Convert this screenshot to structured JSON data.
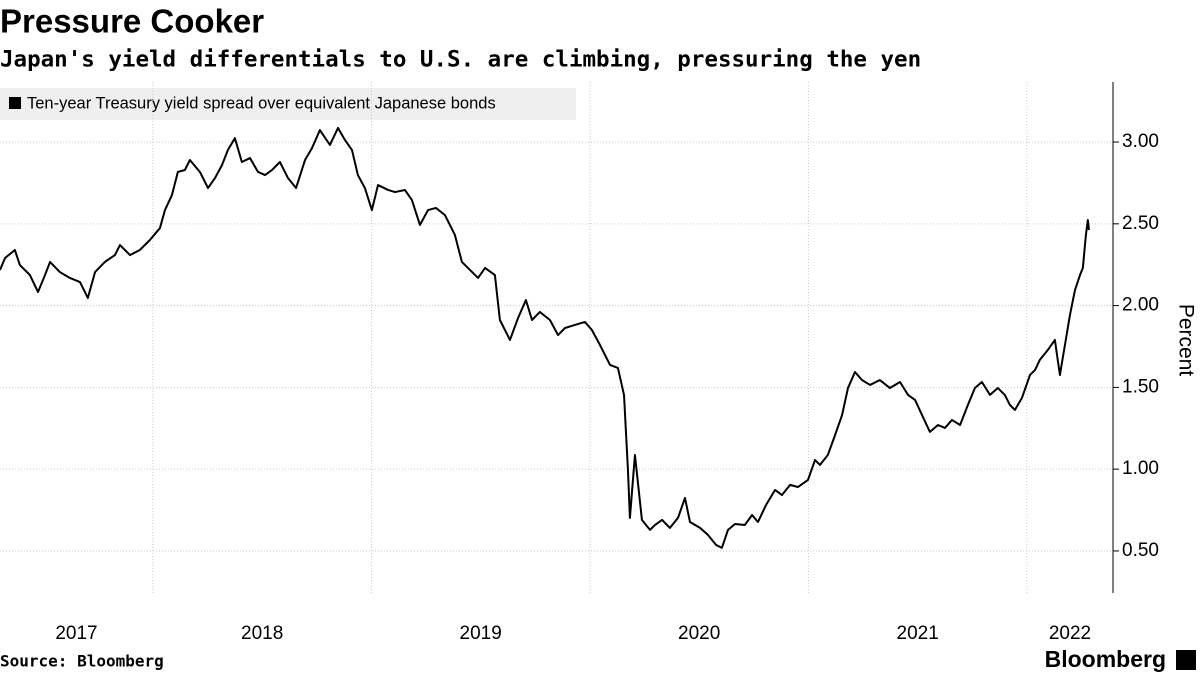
{
  "chart_data": {
    "type": "line",
    "title": "Pressure Cooker",
    "subtitle": "Japan's yield differentials to U.S. are climbing, pressuring the yen",
    "y_label": "Percent",
    "source": "Source: Bloomberg",
    "brand": "Bloomberg",
    "year_labels": [
      "2017",
      "2018",
      "2019",
      "2020",
      "2021",
      "2022"
    ],
    "xlim": [
      2017.3,
      2022.394
    ],
    "xticks": [
      2018,
      2019,
      2020,
      2021,
      2022
    ],
    "ylim": [
      0.243,
      3.367
    ],
    "yticks": [
      {
        "value": 0.5,
        "label": "0.50"
      },
      {
        "value": 1,
        "label": "1.00"
      },
      {
        "value": 1.5,
        "label": "1.50"
      },
      {
        "value": 2,
        "label": "2.00"
      },
      {
        "value": 2.5,
        "label": "2.50"
      },
      {
        "value": 3,
        "label": "3.00"
      }
    ],
    "grid": true,
    "legend": "top-left",
    "series": [
      {
        "name": "Ten-year Treasury yield spread over equivalent Japanese bonds",
        "color": "#000000",
        "x": [
          2017.3,
          2017.323,
          2017.368,
          2017.391,
          2017.437,
          2017.474,
          2017.506,
          2017.529,
          2017.574,
          2017.62,
          2017.666,
          2017.702,
          2017.735,
          2017.78,
          2017.826,
          2017.849,
          2017.895,
          2017.94,
          2017.986,
          2018.032,
          2018.055,
          2018.087,
          2018.114,
          2018.146,
          2018.169,
          2018.215,
          2018.252,
          2018.284,
          2018.316,
          2018.343,
          2018.375,
          2018.407,
          2018.444,
          2018.481,
          2018.513,
          2018.545,
          2018.581,
          2018.618,
          2018.655,
          2018.696,
          2018.728,
          2018.764,
          2018.81,
          2018.847,
          2018.879,
          2018.911,
          2018.938,
          2018.97,
          2019.002,
          2019.03,
          2019.076,
          2019.108,
          2019.153,
          2019.185,
          2019.222,
          2019.259,
          2019.295,
          2019.336,
          2019.382,
          2019.414,
          2019.451,
          2019.488,
          2019.52,
          2019.565,
          2019.588,
          2019.634,
          2019.671,
          2019.707,
          2019.735,
          2019.771,
          2019.817,
          2019.854,
          2019.886,
          2019.931,
          2019.977,
          2020.009,
          2020.046,
          2020.092,
          2020.128,
          2020.156,
          2020.174,
          2020.183,
          2020.206,
          2020.238,
          2020.275,
          2020.298,
          2020.33,
          2020.366,
          2020.403,
          2020.435,
          2020.458,
          2020.504,
          2020.54,
          2020.577,
          2020.604,
          2020.632,
          2020.664,
          2020.709,
          2020.742,
          2020.769,
          2020.806,
          2020.847,
          2020.879,
          2020.916,
          2020.952,
          2020.998,
          2021.03,
          2021.053,
          2021.089,
          2021.122,
          2021.154,
          2021.181,
          2021.213,
          2021.245,
          2021.282,
          2021.327,
          2021.373,
          2021.419,
          2021.456,
          2021.488,
          2021.52,
          2021.556,
          2021.593,
          2021.625,
          2021.657,
          2021.694,
          2021.73,
          2021.762,
          2021.794,
          2021.831,
          2021.867,
          2021.899,
          2021.922,
          2021.945,
          2021.977,
          2022.014,
          2022.037,
          2022.059,
          2022.096,
          2022.128,
          2022.151,
          2022.174,
          2022.197,
          2022.22,
          2022.243,
          2022.256,
          2022.27,
          2022.279,
          2022.284
        ],
        "values": [
          2.218,
          2.291,
          2.34,
          2.248,
          2.187,
          2.083,
          2.187,
          2.267,
          2.205,
          2.169,
          2.144,
          2.047,
          2.205,
          2.267,
          2.309,
          2.37,
          2.309,
          2.34,
          2.401,
          2.474,
          2.584,
          2.676,
          2.817,
          2.829,
          2.89,
          2.817,
          2.719,
          2.78,
          2.859,
          2.951,
          3.024,
          2.878,
          2.902,
          2.817,
          2.798,
          2.829,
          2.878,
          2.78,
          2.719,
          2.89,
          2.963,
          3.073,
          2.982,
          3.086,
          3.012,
          2.951,
          2.798,
          2.719,
          2.584,
          2.737,
          2.707,
          2.694,
          2.707,
          2.646,
          2.493,
          2.584,
          2.597,
          2.554,
          2.432,
          2.267,
          2.218,
          2.169,
          2.23,
          2.187,
          1.912,
          1.79,
          1.924,
          2.034,
          1.912,
          1.961,
          1.912,
          1.82,
          1.863,
          1.882,
          1.9,
          1.851,
          1.759,
          1.637,
          1.619,
          1.454,
          0.995,
          0.702,
          1.087,
          0.69,
          0.629,
          0.659,
          0.69,
          0.641,
          0.702,
          0.824,
          0.677,
          0.641,
          0.598,
          0.537,
          0.519,
          0.629,
          0.665,
          0.659,
          0.72,
          0.677,
          0.781,
          0.873,
          0.842,
          0.904,
          0.891,
          0.934,
          1.056,
          1.026,
          1.087,
          1.209,
          1.331,
          1.496,
          1.594,
          1.545,
          1.515,
          1.545,
          1.496,
          1.533,
          1.454,
          1.423,
          1.331,
          1.228,
          1.27,
          1.252,
          1.301,
          1.27,
          1.393,
          1.496,
          1.533,
          1.454,
          1.496,
          1.454,
          1.393,
          1.362,
          1.435,
          1.576,
          1.606,
          1.668,
          1.729,
          1.79,
          1.576,
          1.759,
          1.943,
          2.095,
          2.187,
          2.23,
          2.432,
          2.523,
          2.462
        ]
      }
    ]
  }
}
